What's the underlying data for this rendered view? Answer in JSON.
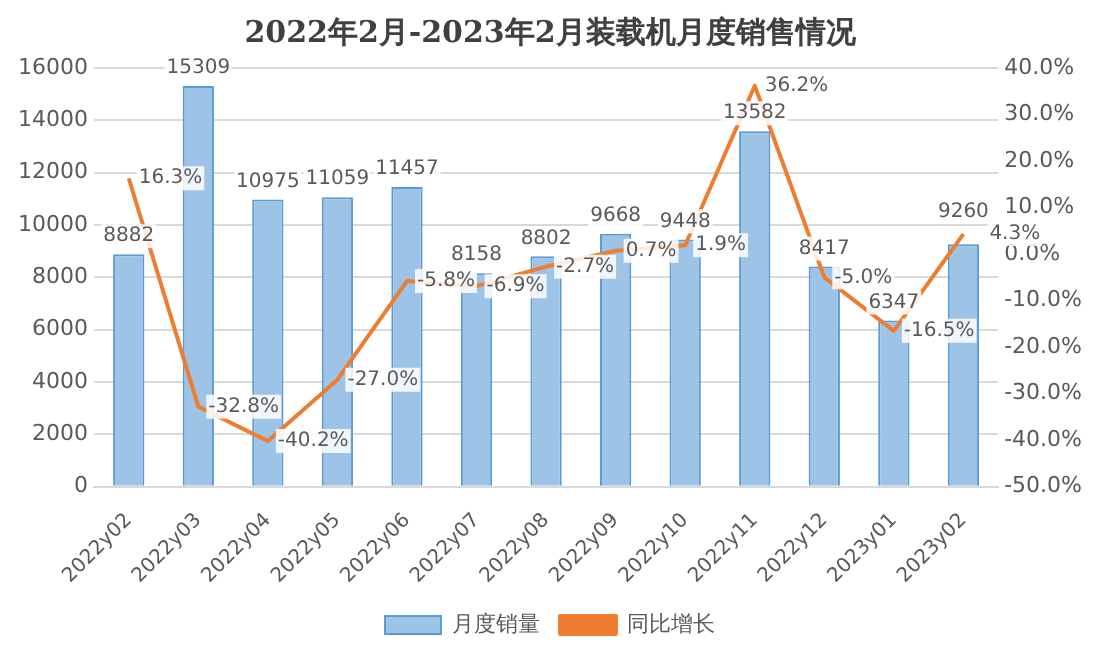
{
  "chart_data": {
    "type": "bar",
    "title": "2022年2月-2023年2月装载机月度销售情况",
    "categories": [
      "2022y02",
      "2022y03",
      "2022y04",
      "2022y05",
      "2022y06",
      "2022y07",
      "2022y08",
      "2022y09",
      "2022y10",
      "2022y11",
      "2022y12",
      "2023y01",
      "2023y02"
    ],
    "series": [
      {
        "name": "月度销量",
        "color": "#9dc3e6",
        "values": [
          8882,
          15309,
          10975,
          11059,
          11457,
          8158,
          8802,
          9668,
          9448,
          13582,
          8417,
          6347,
          9260
        ],
        "value_labels": [
          "8882",
          "15309",
          "10975",
          "11059",
          "11457",
          "8158",
          "8802",
          "9668",
          "9448",
          "13582",
          "8417",
          "6347",
          "9260"
        ]
      },
      {
        "name": "同比增长",
        "type": "line",
        "axis": "y2",
        "color": "#ed7d31",
        "values": [
          16.3,
          -32.8,
          -40.2,
          -27.0,
          -5.8,
          -6.9,
          -2.7,
          0.7,
          1.9,
          36.2,
          -5.0,
          -16.5,
          4.3
        ],
        "value_labels": [
          "16.3%",
          "-32.8%",
          "-40.2%",
          "-27.0%",
          "-5.8%",
          "-6.9%",
          "-2.7%",
          "0.7%",
          "1.9%",
          "36.2%",
          "-5.0%",
          "-16.5%",
          "4.3%"
        ]
      }
    ],
    "ylim": [
      0,
      16000
    ],
    "yticks": [
      0,
      2000,
      4000,
      6000,
      8000,
      10000,
      12000,
      14000,
      16000
    ],
    "y2lim": [
      -50,
      40
    ],
    "y2ticks": [
      {
        "value": -50,
        "label": "-50.0%"
      },
      {
        "value": -40,
        "label": "-40.0%"
      },
      {
        "value": -30,
        "label": "-30.0%"
      },
      {
        "value": -20,
        "label": "-20.0%"
      },
      {
        "value": -10,
        "label": "-10.0%"
      },
      {
        "value": 0,
        "label": "0.0%"
      },
      {
        "value": 10,
        "label": "10.0%"
      },
      {
        "value": 20,
        "label": "20.0%"
      },
      {
        "value": 30,
        "label": "30.0%"
      },
      {
        "value": 40,
        "label": "40.0%"
      }
    ],
    "grid": "y",
    "legend": "bottom",
    "marker": "none"
  }
}
